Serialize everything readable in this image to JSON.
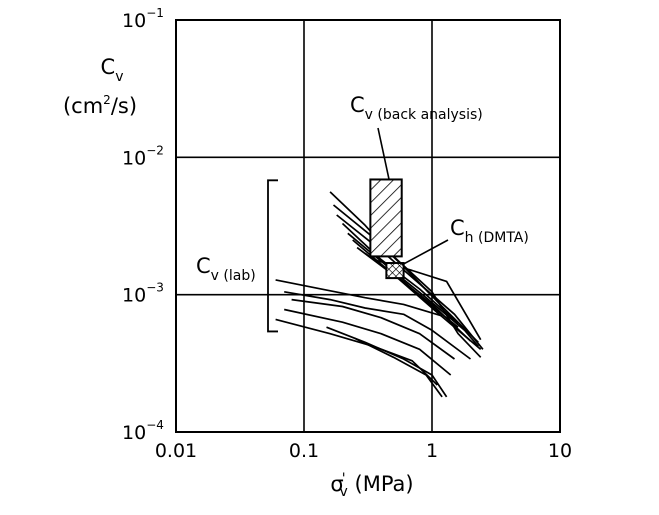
{
  "chart_data": {
    "type": "line",
    "x_scale": "log",
    "y_scale": "log",
    "xlim": [
      0.01,
      10
    ],
    "ylim": [
      0.0001,
      0.1
    ],
    "grid": true,
    "x_ticks": [
      0.01,
      0.1,
      1,
      10
    ],
    "x_tick_labels": [
      "0.01",
      "0.1",
      "1",
      "10"
    ],
    "y_ticks": [
      0.0001,
      0.001,
      0.01,
      0.1
    ],
    "y_tick_labels": [
      {
        "base": "10",
        "exp": "−4"
      },
      {
        "base": "10",
        "exp": "−3"
      },
      {
        "base": "10",
        "exp": "−2"
      },
      {
        "base": "10",
        "exp": "−1"
      }
    ],
    "xlabel": {
      "symbol": "σ",
      "prime": "'",
      "sub": "v",
      "rest": " (MPa)"
    },
    "ylabel": {
      "line1_main": "C",
      "line1_sub": "v",
      "line2_a": "(cm",
      "line2_sup": "2",
      "line2_b": "/s)"
    },
    "series": [
      {
        "points": [
          [
            0.16,
            0.0056
          ],
          [
            0.3,
            0.0032
          ],
          [
            0.5,
            0.0019
          ],
          [
            1.0,
            0.00105
          ],
          [
            1.6,
            0.00052
          ],
          [
            2.4,
            0.00035
          ]
        ]
      },
      {
        "points": [
          [
            0.17,
            0.0045
          ],
          [
            0.35,
            0.0026
          ],
          [
            0.6,
            0.0016
          ],
          [
            1.2,
            0.00082
          ],
          [
            2.3,
            0.00045
          ]
        ]
      },
      {
        "points": [
          [
            0.18,
            0.0038
          ],
          [
            0.4,
            0.0021
          ],
          [
            0.8,
            0.0012
          ],
          [
            1.5,
            0.00072
          ],
          [
            2.5,
            0.0004
          ]
        ]
      },
      {
        "points": [
          [
            0.2,
            0.0033
          ],
          [
            0.4,
            0.0018
          ],
          [
            0.8,
            0.0011
          ],
          [
            1.6,
            0.00062
          ]
        ]
      },
      {
        "points": [
          [
            0.22,
            0.0028
          ],
          [
            0.45,
            0.0016
          ],
          [
            0.9,
            0.00095
          ],
          [
            1.8,
            0.00055
          ],
          [
            2.3,
            0.00042
          ]
        ]
      },
      {
        "points": [
          [
            0.24,
            0.0025
          ],
          [
            0.5,
            0.0014
          ],
          [
            1.0,
            0.00085
          ],
          [
            2.0,
            0.00046
          ]
        ]
      },
      {
        "points": [
          [
            0.26,
            0.0022
          ],
          [
            0.55,
            0.0013
          ],
          [
            1.1,
            0.00074
          ],
          [
            2.4,
            0.0004
          ]
        ]
      },
      {
        "points": [
          [
            0.3,
            0.002
          ],
          [
            0.6,
            0.00125
          ],
          [
            1.0,
            0.00082
          ],
          [
            1.6,
            0.00058
          ]
        ]
      },
      {
        "points": [
          [
            0.35,
            0.0018
          ],
          [
            0.7,
            0.0015
          ],
          [
            1.3,
            0.00125
          ],
          [
            2.4,
            0.00047
          ]
        ]
      },
      {
        "points": [
          [
            0.06,
            0.00128
          ],
          [
            0.15,
            0.00108
          ],
          [
            0.3,
            0.00095
          ],
          [
            0.6,
            0.00085
          ],
          [
            1.2,
            0.0007
          ]
        ]
      },
      {
        "points": [
          [
            0.07,
            0.00105
          ],
          [
            0.16,
            0.00092
          ],
          [
            0.3,
            0.0008
          ],
          [
            0.6,
            0.00072
          ],
          [
            1.0,
            0.00055
          ],
          [
            2.0,
            0.00034
          ]
        ]
      },
      {
        "points": [
          [
            0.08,
            0.00092
          ],
          [
            0.2,
            0.00082
          ],
          [
            0.4,
            0.00068
          ],
          [
            0.8,
            0.00052
          ],
          [
            1.5,
            0.00034
          ]
        ]
      },
      {
        "points": [
          [
            0.07,
            0.00078
          ],
          [
            0.2,
            0.00063
          ],
          [
            0.4,
            0.00052
          ],
          [
            0.8,
            0.0004
          ],
          [
            1.4,
            0.00026
          ]
        ]
      },
      {
        "points": [
          [
            0.06,
            0.00066
          ],
          [
            0.16,
            0.00052
          ],
          [
            0.35,
            0.00042
          ],
          [
            0.7,
            0.00033
          ],
          [
            1.1,
            0.00022
          ]
        ]
      },
      {
        "points": [
          [
            0.15,
            0.00058
          ],
          [
            0.3,
            0.00045
          ],
          [
            0.6,
            0.00034
          ],
          [
            1.0,
            0.00026
          ],
          [
            1.3,
            0.00018
          ]
        ]
      },
      {
        "points": [
          [
            0.25,
            0.00048
          ],
          [
            0.5,
            0.00035
          ],
          [
            0.9,
            0.00026
          ],
          [
            1.2,
            0.00018
          ]
        ]
      }
    ],
    "regions": [
      {
        "label_main": "C",
        "label_sub": "v (back analysis)",
        "x_range": [
          0.33,
          0.58
        ],
        "y_range": [
          0.0019,
          0.0069
        ],
        "hatch": "diagonal"
      },
      {
        "label_main": "C",
        "label_sub": "h (DMTA)",
        "x_range": [
          0.44,
          0.6
        ],
        "y_range": [
          0.00132,
          0.0017
        ],
        "hatch": "cross"
      }
    ],
    "annotations": [
      {
        "label_main": "C",
        "label_sub": "v (lab)",
        "y_range": [
          0.00054,
          0.0068
        ]
      }
    ]
  }
}
